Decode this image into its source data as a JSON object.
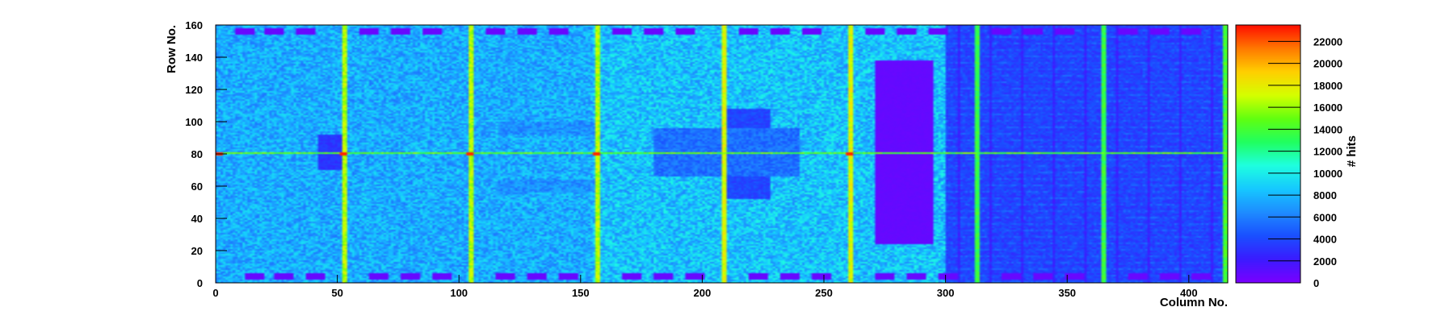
{
  "chart_data": {
    "type": "heatmap",
    "title": "",
    "xlabel": "Column No.",
    "ylabel": "Row No.",
    "zlabel": "# hits",
    "xlim": [
      0,
      416
    ],
    "ylim": [
      0,
      160
    ],
    "zlim": [
      0,
      23500
    ],
    "x_ticks": [
      0,
      50,
      100,
      150,
      200,
      250,
      300,
      350,
      400
    ],
    "y_ticks": [
      0,
      20,
      40,
      60,
      80,
      100,
      120,
      140,
      160
    ],
    "z_ticks": [
      0,
      2000,
      4000,
      6000,
      8000,
      10000,
      12000,
      14000,
      16000,
      18000,
      20000,
      22000
    ],
    "grid": false,
    "colorbar": "right",
    "colormap": [
      "#7a00ff",
      "#3a1cff",
      "#1a50ff",
      "#1e8cff",
      "#16c8ff",
      "#1effe0",
      "#20ff60",
      "#60ff10",
      "#d4ff00",
      "#ffd000",
      "#ff7a00",
      "#ff1000"
    ],
    "field": {
      "base_left": 7800,
      "base_mid": 8600,
      "base_right": 3800,
      "left_region_end": 155,
      "right_region_start": 300
    },
    "hot_columns": [
      {
        "x": 52,
        "value": 16500
      },
      {
        "x": 104,
        "value": 16500
      },
      {
        "x": 156,
        "value": 16500
      },
      {
        "x": 208,
        "value": 17500
      },
      {
        "x": 260,
        "value": 17500
      },
      {
        "x": 312,
        "value": 13500
      },
      {
        "x": 364,
        "value": 13500
      },
      {
        "x": 414,
        "value": 14000
      }
    ],
    "hot_rows": [
      {
        "y": 80,
        "value": 14500
      }
    ],
    "hot_spots": [
      {
        "x": 1,
        "y": 80,
        "value": 23000
      },
      {
        "x": 52,
        "y": 80,
        "value": 23000
      },
      {
        "x": 104,
        "y": 80,
        "value": 23000
      },
      {
        "x": 156,
        "y": 80,
        "value": 23000
      },
      {
        "x": 260,
        "y": 80,
        "value": 23000
      }
    ],
    "low_blocks": [
      {
        "x0": 271,
        "x1": 295,
        "y0": 24,
        "y1": 138,
        "value": 700
      },
      {
        "x0": 208,
        "x1": 228,
        "y0": 52,
        "y1": 108,
        "value": 3900
      },
      {
        "x0": 42,
        "x1": 52,
        "y0": 70,
        "y1": 92,
        "value": 3200
      },
      {
        "x0": 116,
        "x1": 156,
        "y0": 92,
        "y1": 100,
        "value": 6600
      },
      {
        "x0": 116,
        "x1": 156,
        "y0": 56,
        "y1": 64,
        "value": 6600
      },
      {
        "x0": 180,
        "x1": 240,
        "y0": 66,
        "y1": 96,
        "value": 5400
      }
    ],
    "bottom_pads": {
      "y0": 2,
      "y1": 6,
      "x_starts": [
        12,
        24,
        37,
        63,
        76,
        89,
        115,
        128,
        141,
        167,
        180,
        193,
        219,
        232,
        245,
        271,
        284,
        297,
        323,
        336,
        349,
        375,
        388,
        401
      ],
      "width": 8,
      "value": 600
    },
    "top_pads": {
      "y0": 154,
      "y1": 158,
      "x_starts": [
        8,
        20,
        33,
        59,
        72,
        85,
        111,
        124,
        137,
        163,
        176,
        189,
        215,
        228,
        241,
        267,
        280,
        293,
        319,
        332,
        345,
        371,
        384,
        397
      ],
      "width": 8,
      "value": 600
    }
  }
}
